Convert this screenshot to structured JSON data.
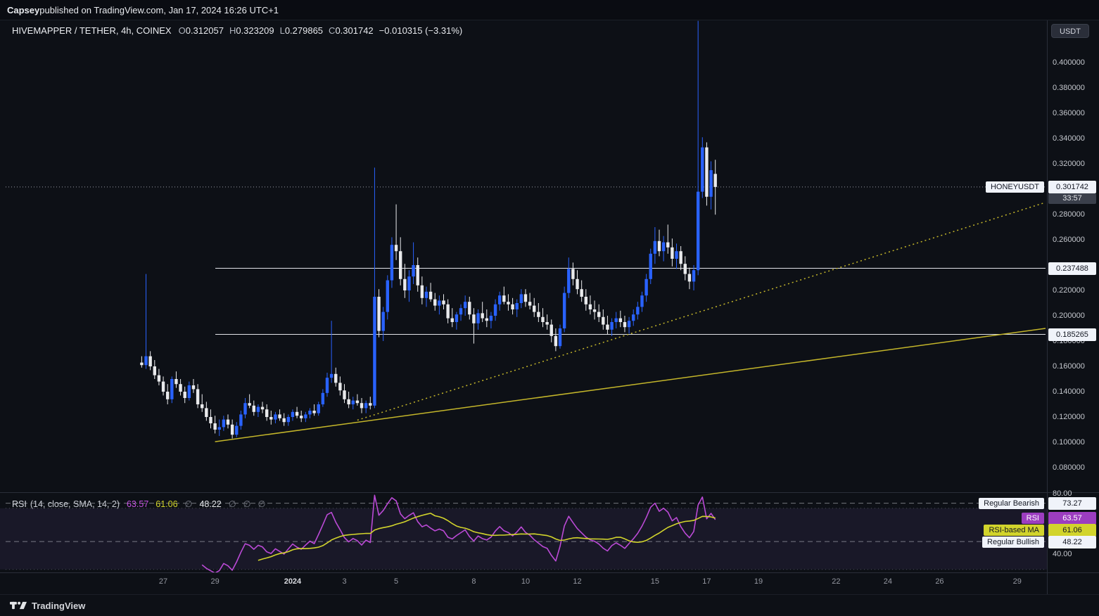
{
  "topbar": {
    "publisher": "Capsey",
    "rest": " published on TradingView.com, Jan 17, 2024 16:26 UTC+1"
  },
  "toolbar": {
    "currency_label": "USDT"
  },
  "legend": {
    "title": "HIVEMAPPER / TETHER, 4h, COINEX",
    "o_label": "O",
    "o": "0.312057",
    "h_label": "H",
    "h": "0.323209",
    "l_label": "L",
    "l": "0.279865",
    "c_label": "C",
    "c": "0.301742",
    "change": "−0.010315 (−3.31%)"
  },
  "rsi_legend": {
    "title": "RSI",
    "params": "(14, close, SMA, 14, 2)",
    "values": [
      {
        "text": "63.57",
        "color": "#c553e2"
      },
      {
        "text": "61.06",
        "color": "#d2d42c"
      },
      {
        "text": "∅",
        "color": "#787b86"
      },
      {
        "text": "48.22",
        "color": "#e6e8ec"
      },
      {
        "text": "∅",
        "color": "#787b86"
      },
      {
        "text": "∅",
        "color": "#787b86"
      },
      {
        "text": "∅",
        "color": "#787b86"
      }
    ]
  },
  "price_axis": {
    "ticks": [
      {
        "label": "0.400000",
        "value": 0.4
      },
      {
        "label": "0.380000",
        "value": 0.38
      },
      {
        "label": "0.360000",
        "value": 0.36
      },
      {
        "label": "0.340000",
        "value": 0.34
      },
      {
        "label": "0.320000",
        "value": 0.32
      },
      {
        "label": "0.280000",
        "value": 0.28
      },
      {
        "label": "0.260000",
        "value": 0.26
      },
      {
        "label": "0.220000",
        "value": 0.22
      },
      {
        "label": "0.200000",
        "value": 0.2
      },
      {
        "label": "0.180000",
        "value": 0.18
      },
      {
        "label": "0.160000",
        "value": 0.16
      },
      {
        "label": "0.140000",
        "value": 0.14
      },
      {
        "label": "0.120000",
        "value": 0.12
      },
      {
        "label": "0.100000",
        "value": 0.1
      },
      {
        "label": "0.080000",
        "value": 0.08
      }
    ],
    "current": {
      "symbol_label": "HONEYUSDT",
      "price_label": "0.301742",
      "value": 0.301742,
      "countdown": "33:57"
    },
    "levels": [
      {
        "label": "0.237488",
        "value": 0.237488
      },
      {
        "label": "0.185265",
        "value": 0.185265
      }
    ]
  },
  "rsi_axis": {
    "top_label": {
      "label": "80.00",
      "value": 80
    },
    "bottom_label": {
      "label": "40.00",
      "value": 40
    },
    "badges": [
      {
        "name": "Regular Bearish",
        "value_label": "73.27",
        "value": 73.27,
        "style": "white"
      },
      {
        "name": "RSI",
        "value_label": "63.57",
        "value": 63.57,
        "style": "purple"
      },
      {
        "name": "RSI-based MA",
        "value_label": "61.06",
        "value": 61.06,
        "style": "yellow"
      },
      {
        "name": "Regular Bullish",
        "value_label": "48.22",
        "value": 48.22,
        "style": "white"
      }
    ]
  },
  "time_axis": {
    "ticks": [
      {
        "label": "27",
        "index": 5
      },
      {
        "label": "29",
        "index": 17
      },
      {
        "label": "2024",
        "index": 35,
        "major": true
      },
      {
        "label": "3",
        "index": 47
      },
      {
        "label": "5",
        "index": 59
      },
      {
        "label": "8",
        "index": 77
      },
      {
        "label": "10",
        "index": 89
      },
      {
        "label": "12",
        "index": 101
      },
      {
        "label": "15",
        "index": 119
      },
      {
        "label": "17",
        "index": 131
      },
      {
        "label": "19",
        "index": 143
      },
      {
        "label": "22",
        "index": 161
      },
      {
        "label": "24",
        "index": 173
      },
      {
        "label": "26",
        "index": 185
      },
      {
        "label": "29",
        "index": 203
      }
    ]
  },
  "watermark": {
    "text": "TradingView"
  },
  "chart_data": {
    "type": "candlestick",
    "symbol": "HIVEMAPPER / TETHER",
    "interval": "4h",
    "exchange": "COINEX",
    "last_bar": {
      "open": 0.312057,
      "high": 0.323209,
      "low": 0.279865,
      "close": 0.301742,
      "change": -0.010315,
      "change_pct": -3.31
    },
    "price_range": [
      0.08,
      0.41
    ],
    "colors": {
      "up": "#2962ff",
      "down": "#e9eaec",
      "rsi": "#bb4ad6",
      "rsi_ma": "#d2d42c",
      "trend": "#c4b62a",
      "level": "#eef0f5",
      "current_line": "#b2b5be"
    },
    "candles": [
      [
        0.163,
        0.168,
        0.159,
        0.161
      ],
      [
        0.161,
        0.233,
        0.158,
        0.168
      ],
      [
        0.168,
        0.172,
        0.157,
        0.16
      ],
      [
        0.16,
        0.165,
        0.15,
        0.153
      ],
      [
        0.153,
        0.158,
        0.145,
        0.148
      ],
      [
        0.148,
        0.152,
        0.137,
        0.14
      ],
      [
        0.14,
        0.146,
        0.13,
        0.134
      ],
      [
        0.134,
        0.152,
        0.131,
        0.15
      ],
      [
        0.15,
        0.156,
        0.143,
        0.146
      ],
      [
        0.146,
        0.15,
        0.137,
        0.14
      ],
      [
        0.14,
        0.144,
        0.131,
        0.135
      ],
      [
        0.135,
        0.148,
        0.133,
        0.145
      ],
      [
        0.145,
        0.15,
        0.139,
        0.142
      ],
      [
        0.142,
        0.146,
        0.127,
        0.13
      ],
      [
        0.13,
        0.138,
        0.124,
        0.127
      ],
      [
        0.127,
        0.132,
        0.117,
        0.12
      ],
      [
        0.12,
        0.126,
        0.111,
        0.115
      ],
      [
        0.115,
        0.121,
        0.107,
        0.11
      ],
      [
        0.11,
        0.118,
        0.105,
        0.112
      ],
      [
        0.112,
        0.121,
        0.109,
        0.118
      ],
      [
        0.118,
        0.122,
        0.111,
        0.114
      ],
      [
        0.114,
        0.118,
        0.103,
        0.106
      ],
      [
        0.106,
        0.116,
        0.104,
        0.113
      ],
      [
        0.113,
        0.125,
        0.11,
        0.122
      ],
      [
        0.122,
        0.135,
        0.119,
        0.131
      ],
      [
        0.131,
        0.138,
        0.127,
        0.129
      ],
      [
        0.129,
        0.133,
        0.121,
        0.124
      ],
      [
        0.124,
        0.13,
        0.12,
        0.128
      ],
      [
        0.128,
        0.132,
        0.123,
        0.126
      ],
      [
        0.126,
        0.13,
        0.117,
        0.12
      ],
      [
        0.12,
        0.125,
        0.114,
        0.118
      ],
      [
        0.118,
        0.124,
        0.115,
        0.122
      ],
      [
        0.122,
        0.126,
        0.117,
        0.119
      ],
      [
        0.119,
        0.123,
        0.113,
        0.116
      ],
      [
        0.116,
        0.122,
        0.113,
        0.12
      ],
      [
        0.12,
        0.126,
        0.117,
        0.124
      ],
      [
        0.124,
        0.128,
        0.119,
        0.121
      ],
      [
        0.121,
        0.125,
        0.116,
        0.119
      ],
      [
        0.119,
        0.124,
        0.116,
        0.122
      ],
      [
        0.122,
        0.127,
        0.119,
        0.125
      ],
      [
        0.125,
        0.13,
        0.121,
        0.123
      ],
      [
        0.123,
        0.132,
        0.121,
        0.13
      ],
      [
        0.13,
        0.142,
        0.128,
        0.139
      ],
      [
        0.139,
        0.155,
        0.136,
        0.151
      ],
      [
        0.151,
        0.196,
        0.147,
        0.154
      ],
      [
        0.154,
        0.159,
        0.144,
        0.147
      ],
      [
        0.147,
        0.152,
        0.137,
        0.141
      ],
      [
        0.141,
        0.146,
        0.131,
        0.134
      ],
      [
        0.134,
        0.14,
        0.127,
        0.13
      ],
      [
        0.13,
        0.136,
        0.126,
        0.133
      ],
      [
        0.133,
        0.138,
        0.129,
        0.131
      ],
      [
        0.131,
        0.135,
        0.123,
        0.127
      ],
      [
        0.127,
        0.133,
        0.123,
        0.131
      ],
      [
        0.131,
        0.136,
        0.126,
        0.129
      ],
      [
        0.129,
        0.317,
        0.127,
        0.215
      ],
      [
        0.215,
        0.221,
        0.183,
        0.188
      ],
      [
        0.188,
        0.207,
        0.18,
        0.203
      ],
      [
        0.203,
        0.232,
        0.197,
        0.228
      ],
      [
        0.228,
        0.262,
        0.222,
        0.256
      ],
      [
        0.256,
        0.288,
        0.244,
        0.251
      ],
      [
        0.251,
        0.262,
        0.224,
        0.229
      ],
      [
        0.229,
        0.241,
        0.214,
        0.22
      ],
      [
        0.22,
        0.236,
        0.211,
        0.231
      ],
      [
        0.231,
        0.258,
        0.225,
        0.24
      ],
      [
        0.24,
        0.246,
        0.219,
        0.224
      ],
      [
        0.224,
        0.231,
        0.209,
        0.214
      ],
      [
        0.214,
        0.223,
        0.207,
        0.219
      ],
      [
        0.219,
        0.226,
        0.211,
        0.213
      ],
      [
        0.213,
        0.218,
        0.204,
        0.208
      ],
      [
        0.208,
        0.216,
        0.201,
        0.212
      ],
      [
        0.212,
        0.217,
        0.205,
        0.209
      ],
      [
        0.209,
        0.213,
        0.194,
        0.198
      ],
      [
        0.198,
        0.206,
        0.191,
        0.195
      ],
      [
        0.195,
        0.203,
        0.189,
        0.201
      ],
      [
        0.201,
        0.209,
        0.196,
        0.206
      ],
      [
        0.206,
        0.216,
        0.2,
        0.211
      ],
      [
        0.211,
        0.215,
        0.197,
        0.201
      ],
      [
        0.201,
        0.206,
        0.178,
        0.194
      ],
      [
        0.194,
        0.205,
        0.189,
        0.202
      ],
      [
        0.202,
        0.211,
        0.195,
        0.198
      ],
      [
        0.198,
        0.205,
        0.191,
        0.196
      ],
      [
        0.196,
        0.203,
        0.19,
        0.2
      ],
      [
        0.2,
        0.213,
        0.196,
        0.209
      ],
      [
        0.209,
        0.219,
        0.204,
        0.216
      ],
      [
        0.216,
        0.223,
        0.209,
        0.211
      ],
      [
        0.211,
        0.217,
        0.204,
        0.209
      ],
      [
        0.209,
        0.214,
        0.201,
        0.205
      ],
      [
        0.205,
        0.213,
        0.199,
        0.21
      ],
      [
        0.21,
        0.221,
        0.206,
        0.217
      ],
      [
        0.217,
        0.221,
        0.207,
        0.211
      ],
      [
        0.211,
        0.218,
        0.205,
        0.208
      ],
      [
        0.208,
        0.214,
        0.199,
        0.203
      ],
      [
        0.203,
        0.21,
        0.195,
        0.199
      ],
      [
        0.199,
        0.206,
        0.191,
        0.195
      ],
      [
        0.195,
        0.201,
        0.189,
        0.193
      ],
      [
        0.193,
        0.197,
        0.179,
        0.184
      ],
      [
        0.184,
        0.19,
        0.172,
        0.176
      ],
      [
        0.176,
        0.193,
        0.174,
        0.19
      ],
      [
        0.19,
        0.223,
        0.187,
        0.218
      ],
      [
        0.218,
        0.246,
        0.214,
        0.237
      ],
      [
        0.237,
        0.242,
        0.224,
        0.229
      ],
      [
        0.229,
        0.236,
        0.217,
        0.221
      ],
      [
        0.221,
        0.228,
        0.211,
        0.215
      ],
      [
        0.215,
        0.221,
        0.204,
        0.209
      ],
      [
        0.209,
        0.216,
        0.201,
        0.205
      ],
      [
        0.205,
        0.212,
        0.197,
        0.203
      ],
      [
        0.203,
        0.209,
        0.195,
        0.199
      ],
      [
        0.199,
        0.205,
        0.189,
        0.193
      ],
      [
        0.193,
        0.2,
        0.185,
        0.189
      ],
      [
        0.189,
        0.198,
        0.184,
        0.195
      ],
      [
        0.195,
        0.203,
        0.19,
        0.198
      ],
      [
        0.198,
        0.204,
        0.191,
        0.195
      ],
      [
        0.195,
        0.2,
        0.187,
        0.191
      ],
      [
        0.191,
        0.199,
        0.186,
        0.196
      ],
      [
        0.196,
        0.205,
        0.192,
        0.201
      ],
      [
        0.201,
        0.211,
        0.197,
        0.207
      ],
      [
        0.207,
        0.219,
        0.203,
        0.216
      ],
      [
        0.216,
        0.233,
        0.211,
        0.229
      ],
      [
        0.229,
        0.253,
        0.225,
        0.249
      ],
      [
        0.249,
        0.27,
        0.241,
        0.259
      ],
      [
        0.259,
        0.268,
        0.247,
        0.251
      ],
      [
        0.251,
        0.263,
        0.243,
        0.258
      ],
      [
        0.258,
        0.272,
        0.249,
        0.254
      ],
      [
        0.254,
        0.261,
        0.239,
        0.245
      ],
      [
        0.245,
        0.257,
        0.237,
        0.251
      ],
      [
        0.251,
        0.255,
        0.236,
        0.241
      ],
      [
        0.241,
        0.247,
        0.228,
        0.233
      ],
      [
        0.233,
        0.238,
        0.221,
        0.227
      ],
      [
        0.227,
        0.24,
        0.22,
        0.236
      ],
      [
        0.236,
        0.433,
        0.232,
        0.298
      ],
      [
        0.298,
        0.341,
        0.293,
        0.333
      ],
      [
        0.333,
        0.337,
        0.287,
        0.294
      ],
      [
        0.294,
        0.322,
        0.284,
        0.315
      ],
      [
        0.312057,
        0.323209,
        0.279865,
        0.301742
      ]
    ],
    "levels": [
      0.237488,
      0.185265
    ],
    "trendlines": [
      {
        "style": "solid",
        "start_index": 17,
        "start_price": 0.1005,
        "end_price_at_right": 0.19
      },
      {
        "style": "dotted",
        "start_index": 50,
        "start_price": 0.1175,
        "end_price_at_right": 0.2895
      }
    ],
    "rsi": {
      "length": 14,
      "source": "close",
      "ma_type": "SMA",
      "ma_length": 14,
      "bb_mult": 2,
      "current": 63.57,
      "ma_current": 61.06,
      "upper_level": 73.27,
      "lower_level": 48.22,
      "visible_range": [
        40,
        80
      ],
      "bands": [
        70,
        30
      ]
    }
  }
}
